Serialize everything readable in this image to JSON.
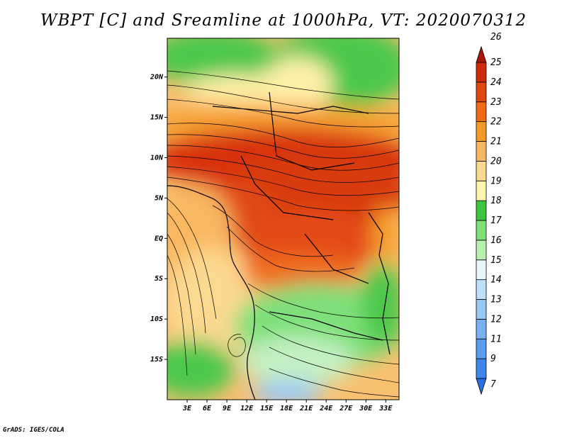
{
  "title": "WBPT [C] and Sreamline at 1000hPa, VT: 2020070312",
  "credit": "GrADS: IGES/COLA",
  "map": {
    "lat_ticks": [
      "20N",
      "15N",
      "10N",
      "5N",
      "EQ",
      "5S",
      "10S",
      "15S"
    ],
    "lon_ticks": [
      "3E",
      "6E",
      "9E",
      "12E",
      "15E",
      "18E",
      "21E",
      "24E",
      "27E",
      "30E",
      "33E"
    ],
    "lat_values": [
      20,
      15,
      10,
      5,
      0,
      -5,
      -10,
      -15
    ],
    "lon_values": [
      3,
      6,
      9,
      12,
      15,
      18,
      21,
      24,
      27,
      30,
      33
    ]
  },
  "colorbar": {
    "labels": [
      "7",
      "9",
      "11",
      "12",
      "13",
      "14",
      "15",
      "16",
      "17",
      "18",
      "19",
      "20",
      "21",
      "22",
      "23",
      "24",
      "25",
      "26"
    ],
    "colors": [
      "#2a6fe0",
      "#3e86ea",
      "#5a9cf0",
      "#78b2f5",
      "#98c8f8",
      "#bde0fb",
      "#e6f6fb",
      "#b9f0b0",
      "#7fe07a",
      "#3fc43f",
      "#fff3b0",
      "#fcd98c",
      "#f8b860",
      "#f59a2a",
      "#f06a18",
      "#e04810",
      "#cc2a08",
      "#a81808"
    ]
  }
}
